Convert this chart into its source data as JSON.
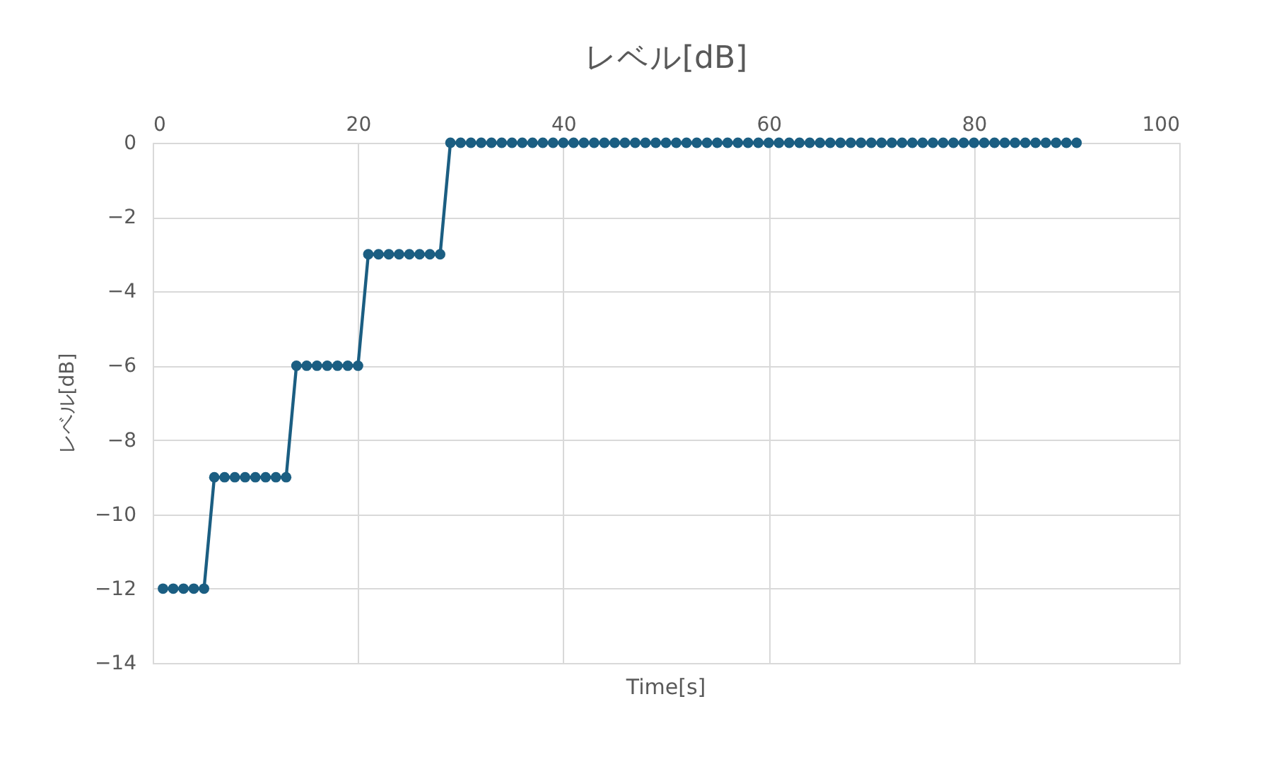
{
  "chart_data": {
    "type": "line",
    "title": "レベル[dB]",
    "xlabel": "Time[s]",
    "ylabel": "レベル[dB]",
    "x": [
      1,
      2,
      3,
      4,
      5,
      6,
      7,
      8,
      9,
      10,
      11,
      12,
      13,
      14,
      15,
      16,
      17,
      18,
      19,
      20,
      21,
      22,
      23,
      24,
      25,
      26,
      27,
      28,
      29,
      30,
      31,
      32,
      33,
      34,
      35,
      36,
      37,
      38,
      39,
      40,
      41,
      42,
      43,
      44,
      45,
      46,
      47,
      48,
      49,
      50,
      51,
      52,
      53,
      54,
      55,
      56,
      57,
      58,
      59,
      60,
      61,
      62,
      63,
      64,
      65,
      66,
      67,
      68,
      69,
      70,
      71,
      72,
      73,
      74,
      75,
      76,
      77,
      78,
      79,
      80,
      81,
      82,
      83,
      84,
      85,
      86,
      87,
      88,
      89,
      90
    ],
    "series": [
      {
        "color": "#1b5e82",
        "values": [
          -12,
          -12,
          -12,
          -12,
          -12,
          -9,
          -9,
          -9,
          -9,
          -9,
          -9,
          -9,
          -9,
          -6,
          -6,
          -6,
          -6,
          -6,
          -6,
          -6,
          -3,
          -3,
          -3,
          -3,
          -3,
          -3,
          -3,
          -3,
          0,
          0,
          0,
          0,
          0,
          0,
          0,
          0,
          0,
          0,
          0,
          0,
          0,
          0,
          0,
          0,
          0,
          0,
          0,
          0,
          0,
          0,
          0,
          0,
          0,
          0,
          0,
          0,
          0,
          0,
          0,
          0,
          0,
          0,
          0,
          0,
          0,
          0,
          0,
          0,
          0,
          0,
          0,
          0,
          0,
          0,
          0,
          0,
          0,
          0,
          0,
          0,
          0,
          0,
          0,
          0,
          0,
          0,
          0,
          0,
          0,
          0
        ]
      }
    ],
    "xlim": [
      0,
      100
    ],
    "xticks": [
      0,
      20,
      40,
      60,
      80,
      100
    ],
    "ylim": [
      -14,
      0
    ],
    "yticks": [
      -14,
      -12,
      -10,
      -8,
      -6,
      -4,
      -2,
      0
    ],
    "grid": true,
    "marker": "circle",
    "line_style": "solid"
  }
}
